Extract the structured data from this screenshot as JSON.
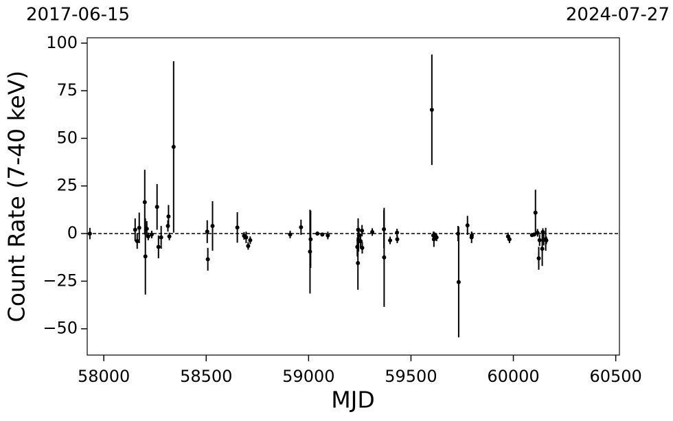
{
  "chart_data": {
    "type": "errorbar",
    "xlabel": "MJD",
    "ylabel": "Count Rate (7-40 keV)",
    "top_labels": [
      "2017-06-15",
      "2024-07-27"
    ],
    "xlim": [
      57919,
      60518
    ],
    "ylim": [
      -63.8,
      102.8
    ],
    "xticks": [
      58000,
      58500,
      59000,
      59500,
      60000,
      60500
    ],
    "yticks": [
      {
        "value": -50,
        "label": "−50"
      },
      {
        "value": -25,
        "label": "−25"
      },
      0,
      25,
      50,
      75,
      100
    ],
    "reference_line": 0,
    "color": "#000000",
    "x": [
      57932,
      58153,
      58163,
      58173,
      58200,
      58203,
      58210,
      58217,
      58234,
      58260,
      58267,
      58280,
      58313,
      58316,
      58320,
      58341,
      58505,
      58508,
      58531,
      58652,
      58685,
      58695,
      58705,
      58715,
      58910,
      58963,
      59007,
      59010,
      59043,
      59067,
      59094,
      59238,
      59241,
      59242,
      59244,
      59246,
      59254,
      59261,
      59262,
      59311,
      59368,
      59369,
      59398,
      59432,
      59433,
      59602,
      59609,
      59612,
      59618,
      59625,
      59730,
      59733,
      59776,
      59796,
      59797,
      59974,
      59981,
      60091,
      60101,
      60108,
      60118,
      60124,
      60128,
      60141,
      60144,
      60148,
      60158,
      60161
    ],
    "values": [
      0,
      2,
      -4,
      3,
      16.5,
      -12,
      2.5,
      -1.5,
      -0.5,
      14,
      -7,
      -2,
      4,
      9,
      -1.5,
      45.5,
      1,
      -13.5,
      4,
      3.2,
      -1.2,
      -2,
      -6.5,
      -3.5,
      -0.5,
      3.3,
      -9.5,
      -3,
      0,
      -0.5,
      -1,
      -7,
      -15.5,
      2,
      -3.5,
      -1,
      -4,
      1.5,
      -7.5,
      0.8,
      2.3,
      -12.5,
      -3.6,
      0.5,
      -3,
      65,
      -1,
      -3,
      -1.5,
      -2,
      0,
      -25.5,
      4.3,
      -2,
      -1,
      -1.5,
      -3,
      -0.8,
      -0.5,
      11,
      0.4,
      -13,
      -3.5,
      -8,
      0.8,
      -3.2,
      -3,
      -3.6
    ],
    "errors": [
      3,
      6,
      4,
      8,
      17,
      20,
      4,
      2,
      2,
      12,
      6,
      6,
      3,
      6,
      2,
      45,
      6,
      6,
      13,
      8,
      2,
      3,
      2,
      2,
      2,
      4,
      22,
      15,
      1,
      1,
      2,
      5,
      14,
      6,
      6,
      4,
      4,
      3,
      3,
      2,
      10,
      26,
      2,
      2,
      2,
      29,
      2,
      4,
      2,
      2,
      4,
      29,
      5,
      3,
      2,
      2,
      2,
      1,
      1,
      12,
      2,
      6,
      3,
      9,
      2,
      3,
      6,
      2
    ]
  }
}
